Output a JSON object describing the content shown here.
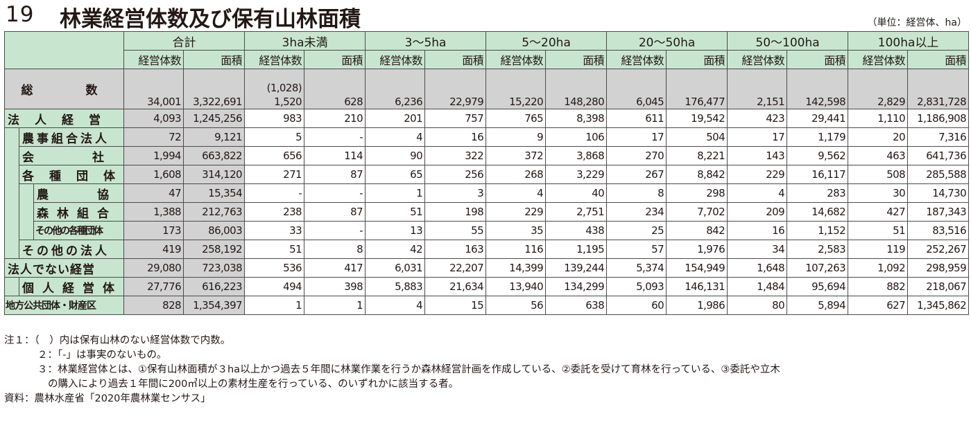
{
  "title": {
    "number": "19",
    "text": "林業経営体数及び保有山林面積",
    "unit": "（単位：経営体、ha）"
  },
  "groups": [
    "合計",
    "3ha未満",
    "3～5ha",
    "5～20ha",
    "20～50ha",
    "50～100ha",
    "100ha以上"
  ],
  "subheaders": [
    "経営体数",
    "面積"
  ],
  "total": {
    "label": "総　　数",
    "note": "(1,028)",
    "values": [
      "34,001",
      "3,322,691",
      "1,520",
      "628",
      "6,236",
      "22,979",
      "15,220",
      "148,280",
      "6,045",
      "176,477",
      "2,151",
      "142,598",
      "2,829",
      "2,831,728"
    ]
  },
  "rows": [
    {
      "label": "法人経営",
      "level": 0,
      "values": [
        "4,093",
        "1,245,256",
        "983",
        "210",
        "201",
        "757",
        "765",
        "8,398",
        "611",
        "19,542",
        "423",
        "29,441",
        "1,110",
        "1,186,908"
      ]
    },
    {
      "label": "農事組合法人",
      "level": 1,
      "values": [
        "72",
        "9,121",
        "5",
        "-",
        "4",
        "16",
        "9",
        "106",
        "17",
        "504",
        "17",
        "1,179",
        "20",
        "7,316"
      ]
    },
    {
      "label": "会社",
      "level": 1,
      "values": [
        "1,994",
        "663,822",
        "656",
        "114",
        "90",
        "322",
        "372",
        "3,868",
        "270",
        "8,221",
        "143",
        "9,562",
        "463",
        "641,736"
      ]
    },
    {
      "label": "各種団体",
      "level": 1,
      "values": [
        "1,608",
        "314,120",
        "271",
        "87",
        "65",
        "256",
        "268",
        "3,229",
        "267",
        "8,842",
        "229",
        "16,117",
        "508",
        "285,588"
      ]
    },
    {
      "label": "農協",
      "level": 2,
      "values": [
        "47",
        "15,354",
        "-",
        "-",
        "1",
        "3",
        "4",
        "40",
        "8",
        "298",
        "4",
        "283",
        "30",
        "14,730"
      ]
    },
    {
      "label": "森林組合",
      "level": 2,
      "values": [
        "1,388",
        "212,763",
        "238",
        "87",
        "51",
        "198",
        "229",
        "2,751",
        "234",
        "7,702",
        "209",
        "14,682",
        "427",
        "187,343"
      ]
    },
    {
      "label": "その他の各種団体",
      "level": 2,
      "values": [
        "173",
        "86,003",
        "33",
        "-",
        "13",
        "55",
        "35",
        "438",
        "25",
        "842",
        "16",
        "1,152",
        "51",
        "83,516"
      ]
    },
    {
      "label": "その他の法人",
      "level": 1,
      "values": [
        "419",
        "258,192",
        "51",
        "8",
        "42",
        "163",
        "116",
        "1,195",
        "57",
        "1,976",
        "34",
        "2,583",
        "119",
        "252,267"
      ]
    },
    {
      "label": "法人でない経営",
      "level": 0,
      "values": [
        "29,080",
        "723,038",
        "536",
        "417",
        "6,031",
        "22,207",
        "14,399",
        "139,244",
        "5,374",
        "154,949",
        "1,648",
        "107,263",
        "1,092",
        "298,959"
      ]
    },
    {
      "label": "個人経営体",
      "level": 1,
      "values": [
        "27,776",
        "616,223",
        "494",
        "398",
        "5,883",
        "21,634",
        "13,940",
        "134,299",
        "5,093",
        "146,131",
        "1,484",
        "95,694",
        "882",
        "218,067"
      ]
    },
    {
      "label": "地方公共団体・財産区",
      "level": 0,
      "values": [
        "828",
        "1,354,397",
        "1",
        "1",
        "4",
        "15",
        "56",
        "638",
        "60",
        "1,986",
        "80",
        "5,894",
        "627",
        "1,345,862"
      ]
    }
  ],
  "notes": {
    "n1": "注１：（　）内は保有山林のない経営体数で内数。",
    "n2": "２：「-」は事実のないもの。",
    "n3a": "３：林業経営体とは、①保有山林面積が３ha以上かつ過去５年間に林業作業を行うか森林経営計画を作成している、②委託を受けて育林を行っている、③委託や立木",
    "n3b": "の購入により過去１年間に200㎥以上の素材生産を行っている、のいずれかに該当する者。",
    "source": "資料：農林水産省「2020年農林業センサス」"
  },
  "colors": {
    "header_green": "#c8e6cf",
    "total_grey": "#d2d2d2",
    "border": "#4a4a4a"
  }
}
